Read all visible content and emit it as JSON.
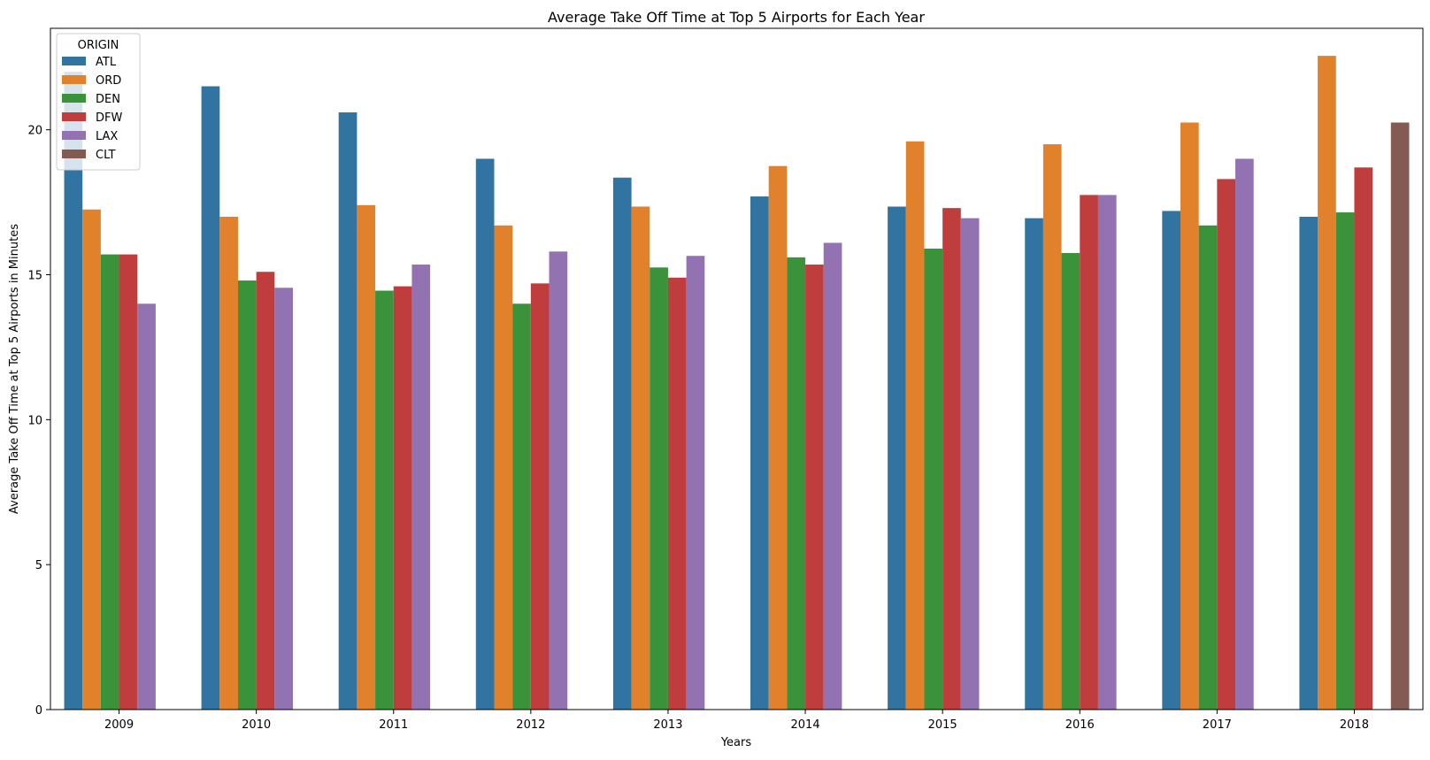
{
  "chart_data": {
    "type": "bar",
    "title": "Average Take Off Time at Top 5 Airports for Each Year",
    "xlabel": "Years",
    "ylabel": "Average Take Off Time at Top 5 Airports in Minutes",
    "categories": [
      "2009",
      "2010",
      "2011",
      "2012",
      "2013",
      "2014",
      "2015",
      "2016",
      "2017",
      "2018"
    ],
    "ylim": [
      0,
      23.5
    ],
    "yticks": [
      0,
      5,
      10,
      15,
      20
    ],
    "grid": false,
    "legend": {
      "title": "ORIGIN",
      "placement": "top-left"
    },
    "series": [
      {
        "name": "ATL",
        "color": "#3274a1",
        "values": [
          22.0,
          21.5,
          20.6,
          19.0,
          18.35,
          17.7,
          17.35,
          16.95,
          17.2,
          17.0
        ]
      },
      {
        "name": "ORD",
        "color": "#e1812c",
        "values": [
          17.25,
          17.0,
          17.4,
          16.7,
          17.35,
          18.75,
          19.6,
          19.5,
          20.25,
          22.55
        ]
      },
      {
        "name": "DEN",
        "color": "#3a923a",
        "values": [
          15.7,
          14.8,
          14.45,
          14.0,
          15.25,
          15.6,
          15.9,
          15.75,
          16.7,
          17.15
        ]
      },
      {
        "name": "DFW",
        "color": "#c03d3e",
        "values": [
          15.7,
          15.1,
          14.6,
          14.7,
          14.9,
          15.35,
          17.3,
          17.75,
          18.3,
          18.7
        ]
      },
      {
        "name": "LAX",
        "color": "#9372b2",
        "values": [
          14.0,
          14.55,
          15.35,
          15.8,
          15.65,
          16.1,
          16.95,
          17.75,
          19.0,
          null
        ]
      },
      {
        "name": "CLT",
        "color": "#845b53",
        "values": [
          null,
          null,
          null,
          null,
          null,
          null,
          null,
          null,
          null,
          20.25
        ]
      }
    ]
  }
}
